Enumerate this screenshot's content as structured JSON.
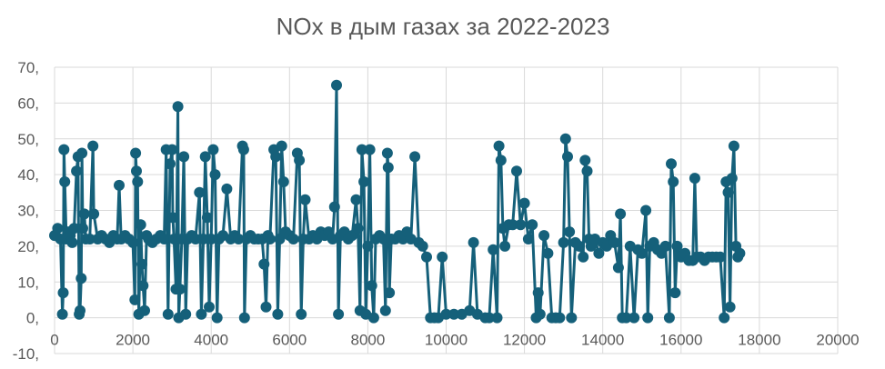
{
  "chart_data": {
    "type": "scatter",
    "title": "NOx в дым газах за 2022-2023",
    "xlabel": "",
    "ylabel": "",
    "xlim": [
      0,
      20000
    ],
    "ylim": [
      -10,
      70
    ],
    "x_ticks": [
      "0",
      "2000",
      "4000",
      "6000",
      "8000",
      "10000",
      "12000",
      "14000",
      "16000",
      "18000",
      "20000"
    ],
    "y_ticks": [
      "70,",
      "60,",
      "50,",
      "40,",
      "30,",
      "20,",
      "10,",
      "0,",
      "-10,"
    ],
    "grid": true,
    "legend": "none",
    "series_color": "#15607a",
    "grid_color": "#d9d9d9",
    "text_color": "#595959",
    "series": [
      {
        "points": [
          [
            0,
            23
          ],
          [
            80,
            25
          ],
          [
            150,
            22
          ],
          [
            200,
            1
          ],
          [
            220,
            7
          ],
          [
            240,
            47
          ],
          [
            260,
            38
          ],
          [
            300,
            22
          ],
          [
            350,
            24
          ],
          [
            400,
            23
          ],
          [
            450,
            21
          ],
          [
            500,
            25
          ],
          [
            560,
            41
          ],
          [
            600,
            45
          ],
          [
            630,
            1
          ],
          [
            650,
            2
          ],
          [
            680,
            11
          ],
          [
            700,
            46
          ],
          [
            720,
            25
          ],
          [
            760,
            29
          ],
          [
            800,
            22
          ],
          [
            900,
            22
          ],
          [
            980,
            48
          ],
          [
            1000,
            29
          ],
          [
            1100,
            22
          ],
          [
            1200,
            23
          ],
          [
            1300,
            22
          ],
          [
            1400,
            21
          ],
          [
            1500,
            23
          ],
          [
            1600,
            22
          ],
          [
            1650,
            37
          ],
          [
            1700,
            22
          ],
          [
            1800,
            23
          ],
          [
            1900,
            22
          ],
          [
            2000,
            21
          ],
          [
            2050,
            5
          ],
          [
            2070,
            46
          ],
          [
            2090,
            41
          ],
          [
            2120,
            38
          ],
          [
            2150,
            1
          ],
          [
            2200,
            26
          ],
          [
            2230,
            15
          ],
          [
            2260,
            9
          ],
          [
            2300,
            2
          ],
          [
            2350,
            23
          ],
          [
            2400,
            22
          ],
          [
            2500,
            21
          ],
          [
            2600,
            22
          ],
          [
            2700,
            23
          ],
          [
            2800,
            22
          ],
          [
            2850,
            47
          ],
          [
            2900,
            1
          ],
          [
            2950,
            43
          ],
          [
            3000,
            47
          ],
          [
            3020,
            28
          ],
          [
            3050,
            22
          ],
          [
            3100,
            8
          ],
          [
            3150,
            59
          ],
          [
            3170,
            0
          ],
          [
            3200,
            8
          ],
          [
            3250,
            22
          ],
          [
            3300,
            45
          ],
          [
            3350,
            1
          ],
          [
            3400,
            22
          ],
          [
            3500,
            23
          ],
          [
            3600,
            22
          ],
          [
            3700,
            35
          ],
          [
            3750,
            1
          ],
          [
            3800,
            22
          ],
          [
            3850,
            45
          ],
          [
            3900,
            28
          ],
          [
            3950,
            3
          ],
          [
            4000,
            22
          ],
          [
            4050,
            47
          ],
          [
            4100,
            40
          ],
          [
            4150,
            0
          ],
          [
            4200,
            22
          ],
          [
            4300,
            23
          ],
          [
            4400,
            36
          ],
          [
            4500,
            22
          ],
          [
            4600,
            23
          ],
          [
            4700,
            22
          ],
          [
            4800,
            48
          ],
          [
            4830,
            47
          ],
          [
            4850,
            0
          ],
          [
            4900,
            22
          ],
          [
            5000,
            23
          ],
          [
            5100,
            22
          ],
          [
            5200,
            22
          ],
          [
            5300,
            22
          ],
          [
            5350,
            15
          ],
          [
            5400,
            3
          ],
          [
            5450,
            23
          ],
          [
            5500,
            22
          ],
          [
            5600,
            47
          ],
          [
            5650,
            45
          ],
          [
            5700,
            1
          ],
          [
            5750,
            22
          ],
          [
            5800,
            48
          ],
          [
            5850,
            38
          ],
          [
            5900,
            24
          ],
          [
            6000,
            23
          ],
          [
            6100,
            22
          ],
          [
            6200,
            46
          ],
          [
            6250,
            44
          ],
          [
            6300,
            1
          ],
          [
            6350,
            22
          ],
          [
            6400,
            33
          ],
          [
            6500,
            22
          ],
          [
            6600,
            23
          ],
          [
            6700,
            22
          ],
          [
            6800,
            24
          ],
          [
            6900,
            23
          ],
          [
            7000,
            24
          ],
          [
            7100,
            22
          ],
          [
            7150,
            31
          ],
          [
            7200,
            65
          ],
          [
            7250,
            1
          ],
          [
            7300,
            23
          ],
          [
            7400,
            24
          ],
          [
            7500,
            22
          ],
          [
            7600,
            23
          ],
          [
            7700,
            33
          ],
          [
            7750,
            25
          ],
          [
            7800,
            2
          ],
          [
            7850,
            47
          ],
          [
            7900,
            38
          ],
          [
            7950,
            1
          ],
          [
            8000,
            20
          ],
          [
            8050,
            47
          ],
          [
            8100,
            9
          ],
          [
            8150,
            0
          ],
          [
            8200,
            22
          ],
          [
            8300,
            23
          ],
          [
            8400,
            22
          ],
          [
            8450,
            2
          ],
          [
            8500,
            46
          ],
          [
            8520,
            42
          ],
          [
            8550,
            7
          ],
          [
            8600,
            22
          ],
          [
            8700,
            22
          ],
          [
            8800,
            23
          ],
          [
            8900,
            22
          ],
          [
            9000,
            24
          ],
          [
            9100,
            22
          ],
          [
            9200,
            45
          ],
          [
            9300,
            21
          ],
          [
            9400,
            20
          ],
          [
            9500,
            17
          ],
          [
            9600,
            0
          ],
          [
            9700,
            0
          ],
          [
            9800,
            0
          ],
          [
            9900,
            17
          ],
          [
            10000,
            1
          ],
          [
            10200,
            1
          ],
          [
            10400,
            1
          ],
          [
            10600,
            2
          ],
          [
            10700,
            21
          ],
          [
            10800,
            1
          ],
          [
            11000,
            0
          ],
          [
            11100,
            0
          ],
          [
            11200,
            19
          ],
          [
            11300,
            0
          ],
          [
            11350,
            48
          ],
          [
            11400,
            44
          ],
          [
            11450,
            25
          ],
          [
            11500,
            20
          ],
          [
            11600,
            26
          ],
          [
            11700,
            26
          ],
          [
            11800,
            41
          ],
          [
            11900,
            26
          ],
          [
            12000,
            32
          ],
          [
            12100,
            22
          ],
          [
            12200,
            26
          ],
          [
            12300,
            0
          ],
          [
            12350,
            7
          ],
          [
            12400,
            1
          ],
          [
            12500,
            23
          ],
          [
            12600,
            18
          ],
          [
            12700,
            0
          ],
          [
            12800,
            0
          ],
          [
            12900,
            0
          ],
          [
            13000,
            21
          ],
          [
            13050,
            50
          ],
          [
            13100,
            45
          ],
          [
            13150,
            24
          ],
          [
            13200,
            0
          ],
          [
            13300,
            21
          ],
          [
            13400,
            20
          ],
          [
            13500,
            17
          ],
          [
            13550,
            44
          ],
          [
            13600,
            41
          ],
          [
            13650,
            22
          ],
          [
            13700,
            20
          ],
          [
            13800,
            22
          ],
          [
            13900,
            18
          ],
          [
            14000,
            21
          ],
          [
            14100,
            20
          ],
          [
            14200,
            23
          ],
          [
            14300,
            21
          ],
          [
            14400,
            14
          ],
          [
            14450,
            29
          ],
          [
            14500,
            0
          ],
          [
            14600,
            0
          ],
          [
            14700,
            20
          ],
          [
            14800,
            0
          ],
          [
            14900,
            19
          ],
          [
            15000,
            18
          ],
          [
            15100,
            30
          ],
          [
            15150,
            0
          ],
          [
            15200,
            20
          ],
          [
            15300,
            21
          ],
          [
            15400,
            19
          ],
          [
            15500,
            18
          ],
          [
            15600,
            20
          ],
          [
            15700,
            0
          ],
          [
            15750,
            43
          ],
          [
            15800,
            38
          ],
          [
            15850,
            7
          ],
          [
            15900,
            20
          ],
          [
            16000,
            17
          ],
          [
            16100,
            18
          ],
          [
            16200,
            16
          ],
          [
            16300,
            16
          ],
          [
            16350,
            39
          ],
          [
            16400,
            17
          ],
          [
            16500,
            17
          ],
          [
            16600,
            16
          ],
          [
            16700,
            17
          ],
          [
            16800,
            17
          ],
          [
            16900,
            17
          ],
          [
            17000,
            17
          ],
          [
            17100,
            0
          ],
          [
            17150,
            38
          ],
          [
            17200,
            35
          ],
          [
            17250,
            3
          ],
          [
            17300,
            39
          ],
          [
            17350,
            48
          ],
          [
            17400,
            20
          ],
          [
            17450,
            17
          ],
          [
            17500,
            18
          ]
        ]
      }
    ]
  }
}
